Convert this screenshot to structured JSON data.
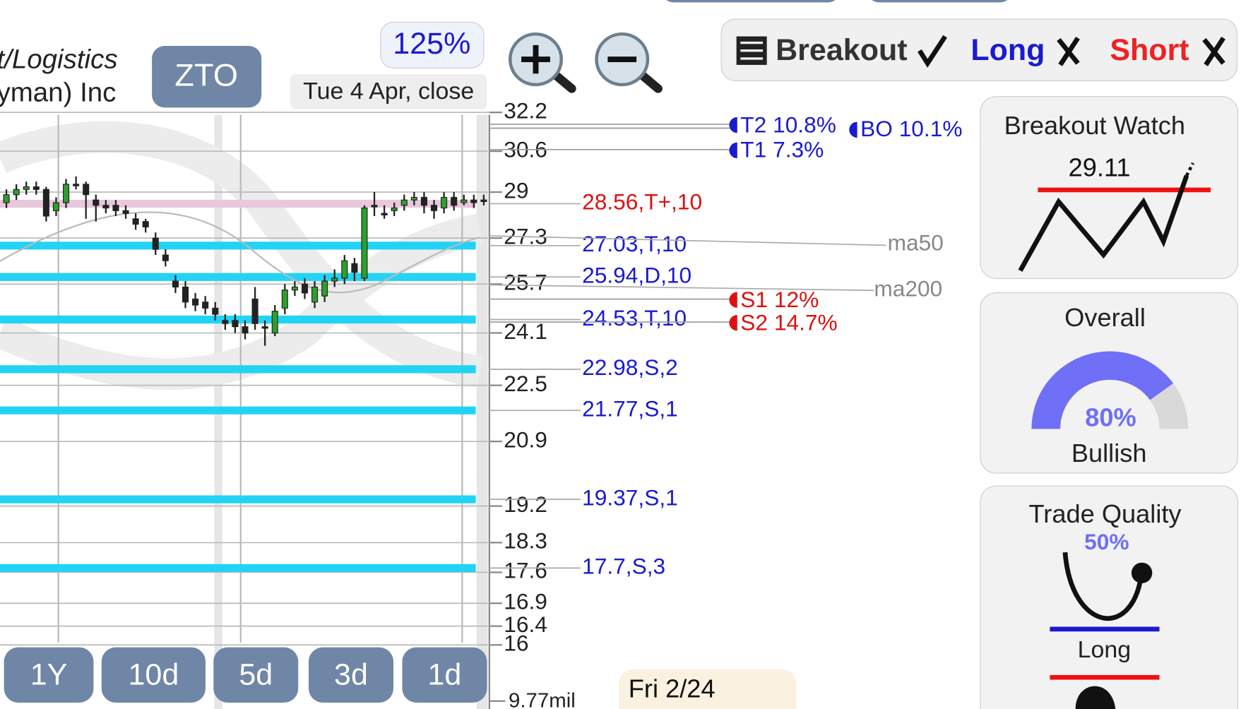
{
  "chart_data": {
    "type": "candlestick",
    "log_scale": true,
    "ylim": [
      16,
      32.2
    ],
    "yticks": [
      32.2,
      30.6,
      29,
      27.3,
      25.7,
      24.1,
      22.5,
      20.9,
      19.2,
      18.3,
      17.6,
      16.9,
      16.4,
      16
    ],
    "grid": true,
    "up_color": "#2ca02c",
    "down_color": "#222222",
    "open": [
      28.6,
      28.9,
      29.1,
      29.2,
      29.1,
      28.3,
      28.6,
      29.3,
      29.3,
      28.7,
      28.5,
      28.5,
      28.3,
      28.0,
      27.9,
      27.3,
      26.7,
      25.8,
      25.6,
      25.2,
      25.1,
      24.9,
      24.5,
      24.5,
      24.3,
      25.2,
      24.3,
      24.1,
      24.9,
      25.5,
      25.7,
      25.1,
      25.3,
      25.8,
      25.9,
      26.4,
      25.9,
      28.5,
      28.2,
      28.3,
      28.5,
      28.7,
      28.8,
      28.5,
      28.4,
      28.8,
      28.6,
      28.7,
      28.7
    ],
    "high": [
      29.1,
      29.3,
      29.4,
      29.4,
      29.2,
      28.8,
      29.5,
      29.6,
      29.4,
      28.9,
      28.7,
      28.7,
      28.5,
      28.2,
      28.0,
      27.5,
      26.9,
      26.0,
      25.8,
      25.4,
      25.3,
      25.1,
      24.7,
      24.7,
      24.5,
      25.6,
      24.5,
      25.0,
      25.7,
      25.8,
      25.9,
      25.8,
      26.0,
      26.2,
      26.7,
      26.6,
      28.5,
      29.0,
      28.5,
      28.6,
      28.9,
      29.0,
      29.0,
      28.7,
      29.0,
      29.0,
      28.9,
      28.9,
      28.9
    ],
    "low": [
      28.4,
      28.7,
      28.9,
      28.9,
      27.9,
      28.1,
      28.4,
      29.1,
      28.0,
      27.9,
      28.2,
      28.1,
      28.0,
      27.6,
      27.5,
      26.7,
      26.3,
      25.4,
      24.9,
      24.8,
      24.7,
      24.5,
      24.2,
      24.1,
      23.9,
      24.2,
      23.7,
      24.0,
      24.7,
      25.3,
      25.2,
      24.9,
      25.1,
      25.6,
      25.7,
      25.8,
      25.8,
      28.1,
      28.0,
      28.1,
      28.3,
      28.5,
      28.2,
      28.0,
      28.2,
      28.3,
      28.5,
      28.4,
      28.5
    ],
    "close": [
      28.9,
      29.1,
      29.2,
      29.1,
      28.1,
      28.6,
      29.3,
      29.3,
      28.9,
      28.5,
      28.4,
      28.3,
      28.2,
      27.8,
      27.7,
      26.9,
      26.5,
      25.6,
      25.1,
      25.0,
      24.9,
      24.7,
      24.4,
      24.3,
      24.1,
      24.4,
      24.3,
      24.8,
      25.5,
      25.6,
      25.4,
      25.6,
      25.8,
      25.9,
      26.5,
      26.1,
      28.4,
      28.5,
      28.2,
      28.4,
      28.7,
      28.8,
      28.5,
      28.3,
      28.8,
      28.5,
      28.7,
      28.6,
      28.7
    ],
    "levels": [
      {
        "value": 28.56,
        "label": "28.56,T+,10",
        "color": "#dd1111",
        "band": "#e8c8dc"
      },
      {
        "value": 27.03,
        "label": "27.03,T,10",
        "color": "#1a1ad0",
        "band": "#22d3f5"
      },
      {
        "value": 25.94,
        "label": "25.94,D,10",
        "color": "#1a1ad0",
        "band": "#22d3f5"
      },
      {
        "value": 24.53,
        "label": "24.53,T,10",
        "color": "#1a1ad0",
        "band": "#22d3f5"
      },
      {
        "value": 22.98,
        "label": "22.98,S,2",
        "color": "#1a1ad0",
        "band": "#22d3f5"
      },
      {
        "value": 21.77,
        "label": "21.77,S,1",
        "color": "#1a1ad0",
        "band": "#22d3f5"
      },
      {
        "value": 19.37,
        "label": "19.37,S,1",
        "color": "#1a1ad0",
        "band": "#22d3f5"
      },
      {
        "value": 17.7,
        "label": "17.7,S,3",
        "color": "#1a1ad0",
        "band": "#22d3f5"
      }
    ],
    "volume_label": "9.77mil"
  },
  "header": {
    "company_1": "t/Logistics",
    "company_2": "yman) Inc",
    "ticker": "ZTO",
    "zoom": "125%",
    "date": "Tue 4 Apr, close"
  },
  "targets": {
    "t2": "T2 10.8%",
    "bo": "BO 10.1%",
    "t1": "T1 7.3%",
    "s1": "S1 12%",
    "s2": "S2 14.7%",
    "ma50": "ma50",
    "ma200": "ma200"
  },
  "ranges": [
    "1Y",
    "10d",
    "5d",
    "3d",
    "1d"
  ],
  "hover_date": "Fri 2/24",
  "signals": {
    "breakout": "Breakout",
    "long": "Long",
    "short": "Short"
  },
  "panels": {
    "breakout_watch": {
      "title": "Breakout Watch",
      "price": 29.11
    },
    "overall": {
      "title": "Overall",
      "score": {
        "value": 80,
        "label": "80%"
      },
      "verdict": "Bullish"
    },
    "trade_quality": {
      "title": "Trade Quality",
      "score": {
        "value": 50,
        "label": "50%"
      },
      "side": "Long"
    }
  }
}
